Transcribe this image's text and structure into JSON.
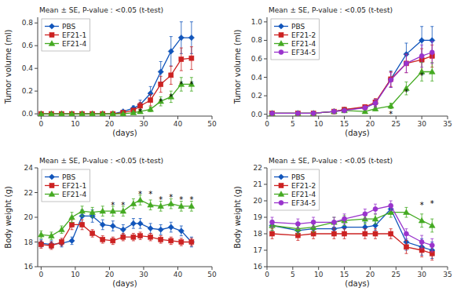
{
  "chart_data": [
    {
      "type": "line",
      "x_label": "(days)",
      "y_label": "Tumor volume (ml)",
      "xlim": [
        -1,
        50
      ],
      "ylim": [
        -0.02,
        0.85
      ],
      "xticks": [
        0,
        10,
        20,
        30,
        40,
        50
      ],
      "yticks": [
        {
          "value": 0,
          "label": "0.0"
        },
        0.2,
        0.4,
        0.6,
        0.8
      ],
      "annotation": "Mean ± SE, P-value : <0.05 (t-test)",
      "legend": "upper left",
      "grid": false,
      "x": [
        0,
        3,
        6,
        9,
        12,
        15,
        18,
        21,
        24,
        27,
        29,
        32,
        35,
        38,
        41,
        44
      ],
      "series": [
        {
          "name": "PBS",
          "color": "#1155bb",
          "marker": "diamond",
          "values": [
            0.0,
            0.0,
            0.0,
            0.0,
            0.0,
            0.0,
            0.0,
            0.0,
            0.02,
            0.05,
            0.08,
            0.18,
            0.37,
            0.55,
            0.67,
            0.67
          ],
          "errors": [
            0.0,
            0.0,
            0.0,
            0.0,
            0.0,
            0.0,
            0.0,
            0.0,
            0.01,
            0.02,
            0.04,
            0.06,
            0.09,
            0.13,
            0.14,
            0.14
          ]
        },
        {
          "name": "EF21-1",
          "color": "#cc2222",
          "marker": "square",
          "values": [
            0.0,
            0.0,
            0.0,
            0.0,
            0.0,
            0.0,
            0.0,
            0.0,
            0.01,
            0.03,
            0.07,
            0.12,
            0.26,
            0.34,
            0.48,
            0.49
          ],
          "errors": [
            0.0,
            0.0,
            0.0,
            0.0,
            0.0,
            0.0,
            0.0,
            0.0,
            0.005,
            0.01,
            0.03,
            0.05,
            0.07,
            0.08,
            0.1,
            0.1
          ]
        },
        {
          "name": "EF21-4",
          "color": "#44aa22",
          "marker": "triangle",
          "values": [
            0.0,
            0.0,
            0.0,
            0.0,
            0.0,
            0.0,
            0.0,
            0.0,
            0.0,
            0.01,
            0.02,
            0.04,
            0.11,
            0.15,
            0.26,
            0.26
          ],
          "errors": [
            0.0,
            0.0,
            0.0,
            0.0,
            0.0,
            0.0,
            0.0,
            0.0,
            0.0,
            0.005,
            0.01,
            0.02,
            0.04,
            0.05,
            0.06,
            0.06
          ]
        }
      ],
      "stars": [
        {
          "x": 29,
          "y": 0.025,
          "label": "*"
        },
        {
          "x": 35,
          "y": 0.12,
          "label": "*"
        },
        {
          "x": 38,
          "y": 0.16,
          "label": "*"
        },
        {
          "x": 41,
          "y": 0.27,
          "label": "*"
        },
        {
          "x": 44,
          "y": 0.27,
          "label": "*"
        }
      ]
    },
    {
      "type": "line",
      "x_label": "(days)",
      "y_label": "Tumor volume (ml)",
      "xlim": [
        0,
        35
      ],
      "ylim": [
        -0.02,
        1.05
      ],
      "xticks": [
        0,
        5,
        10,
        15,
        20,
        25,
        30,
        35
      ],
      "yticks": [
        {
          "value": 0,
          "label": "0.0"
        },
        0.2,
        0.4,
        0.6,
        0.8,
        {
          "value": 1.0,
          "label": "1.0"
        }
      ],
      "annotation": "Mean ± SE, P-value : <0.05 (t-test)",
      "legend": "upper left",
      "grid": false,
      "x": [
        1,
        6,
        9,
        13,
        15,
        19,
        21,
        24,
        27,
        30,
        32
      ],
      "series": [
        {
          "name": "PBS",
          "color": "#1155bb",
          "marker": "diamond",
          "values": [
            0.01,
            0.01,
            0.01,
            0.03,
            0.05,
            0.07,
            0.12,
            0.38,
            0.65,
            0.8,
            0.8
          ],
          "errors": [
            0.005,
            0.005,
            0.005,
            0.01,
            0.02,
            0.02,
            0.04,
            0.09,
            0.12,
            0.15,
            0.15
          ]
        },
        {
          "name": "EF21-2",
          "color": "#cc2222",
          "marker": "square",
          "values": [
            0.01,
            0.01,
            0.01,
            0.03,
            0.05,
            0.08,
            0.13,
            0.38,
            0.55,
            0.59,
            0.63
          ],
          "errors": [
            0.005,
            0.005,
            0.005,
            0.01,
            0.02,
            0.02,
            0.04,
            0.08,
            0.1,
            0.12,
            0.12
          ]
        },
        {
          "name": "EF21-4",
          "color": "#44aa22",
          "marker": "triangle",
          "values": [
            0.01,
            0.01,
            0.01,
            0.03,
            0.04,
            0.03,
            0.06,
            0.09,
            0.28,
            0.46,
            0.46
          ],
          "errors": [
            0.005,
            0.005,
            0.005,
            0.01,
            0.015,
            0.01,
            0.02,
            0.03,
            0.07,
            0.1,
            0.1
          ]
        },
        {
          "name": "EF34-5",
          "color": "#9933cc",
          "marker": "circle",
          "values": [
            0.01,
            0.01,
            0.01,
            0.03,
            0.04,
            0.07,
            0.12,
            0.37,
            0.55,
            0.63,
            0.67
          ],
          "errors": [
            0.005,
            0.005,
            0.005,
            0.01,
            0.015,
            0.02,
            0.04,
            0.08,
            0.1,
            0.12,
            0.12
          ]
        }
      ],
      "stars": [
        {
          "x": 24,
          "y": 0.01,
          "label": "*"
        },
        {
          "x": 27,
          "y": 0.25,
          "label": "*"
        },
        {
          "x": 30,
          "y": 0.43,
          "label": "*"
        }
      ]
    },
    {
      "type": "line",
      "x_label": "(days)",
      "y_label": "Body weight (g)",
      "xlim": [
        -1,
        50
      ],
      "ylim": [
        16,
        24
      ],
      "xticks": [
        0,
        10,
        20,
        30,
        40,
        50
      ],
      "yticks": [
        16,
        18,
        20,
        22,
        24
      ],
      "annotation": "Mean ± SE, P-value : <0.05 (t-test)",
      "legend": "upper left",
      "grid": false,
      "x": [
        0,
        3,
        6,
        9,
        12,
        15,
        18,
        21,
        24,
        27,
        29,
        32,
        35,
        38,
        41,
        44
      ],
      "series": [
        {
          "name": "PBS",
          "color": "#1155bb",
          "marker": "diamond",
          "values": [
            17.9,
            17.8,
            17.9,
            18.1,
            20.1,
            20.1,
            19.4,
            19.3,
            19.0,
            19.5,
            19.5,
            19.1,
            19.0,
            19.2,
            18.9,
            18.0
          ],
          "errors": [
            0.3,
            0.3,
            0.3,
            0.3,
            0.5,
            0.5,
            0.4,
            0.4,
            0.4,
            0.4,
            0.4,
            0.4,
            0.4,
            0.4,
            0.4,
            0.4
          ]
        },
        {
          "name": "EF21-1",
          "color": "#cc2222",
          "marker": "square",
          "values": [
            17.8,
            17.7,
            18.0,
            19.4,
            19.4,
            18.7,
            18.2,
            18.1,
            18.4,
            18.4,
            18.5,
            18.4,
            18.2,
            18.1,
            18.0,
            18.0
          ],
          "errors": [
            0.3,
            0.3,
            0.3,
            0.4,
            0.4,
            0.3,
            0.3,
            0.3,
            0.3,
            0.3,
            0.3,
            0.3,
            0.3,
            0.3,
            0.3,
            0.3
          ]
        },
        {
          "name": "EF21-4",
          "color": "#44aa22",
          "marker": "triangle",
          "values": [
            18.6,
            18.5,
            19.0,
            20.0,
            20.5,
            20.4,
            20.5,
            20.5,
            20.5,
            21.1,
            21.4,
            21.0,
            20.9,
            21.1,
            20.9,
            20.9
          ],
          "errors": [
            0.3,
            0.3,
            0.3,
            0.4,
            0.4,
            0.4,
            0.4,
            0.4,
            0.4,
            0.4,
            0.4,
            0.4,
            0.4,
            0.4,
            0.4,
            0.4
          ]
        }
      ],
      "stars": [
        {
          "x": 21,
          "y": 21.1,
          "label": "*"
        },
        {
          "x": 24,
          "y": 21.1,
          "label": "*"
        },
        {
          "x": 29,
          "y": 22.0,
          "label": "*"
        },
        {
          "x": 32,
          "y": 22.0,
          "label": "*"
        },
        {
          "x": 35,
          "y": 21.5,
          "label": "*"
        },
        {
          "x": 38,
          "y": 21.7,
          "label": "*"
        },
        {
          "x": 41,
          "y": 21.5,
          "label": "*"
        },
        {
          "x": 44,
          "y": 21.5,
          "label": "*"
        }
      ]
    },
    {
      "type": "line",
      "x_label": "(days)",
      "y_label": "Body weight (g)",
      "xlim": [
        0,
        35
      ],
      "ylim": [
        16,
        22
      ],
      "xticks": [
        0,
        5,
        10,
        15,
        20,
        25,
        30,
        35
      ],
      "yticks": [
        16,
        17,
        18,
        19,
        20,
        21,
        22
      ],
      "annotation": "Mean ± SE, P-value : <0.05 (t-test)",
      "legend": "upper left",
      "grid": false,
      "x": [
        1,
        6,
        9,
        13,
        15,
        19,
        21,
        24,
        27,
        30,
        32
      ],
      "series": [
        {
          "name": "PBS",
          "color": "#1155bb",
          "marker": "diamond",
          "values": [
            18.5,
            18.2,
            18.3,
            18.3,
            18.4,
            18.4,
            18.5,
            19.5,
            17.5,
            17.2,
            17.0
          ],
          "errors": [
            0.3,
            0.3,
            0.3,
            0.3,
            0.3,
            0.3,
            0.3,
            0.3,
            0.5,
            0.5,
            0.5
          ]
        },
        {
          "name": "EF21-2",
          "color": "#cc2222",
          "marker": "square",
          "values": [
            18.0,
            17.9,
            18.0,
            18.0,
            18.0,
            18.0,
            18.0,
            18.0,
            17.2,
            17.0,
            16.8
          ],
          "errors": [
            0.3,
            0.3,
            0.3,
            0.3,
            0.3,
            0.3,
            0.3,
            0.3,
            0.4,
            0.4,
            0.4
          ]
        },
        {
          "name": "EF21-4",
          "color": "#44aa22",
          "marker": "triangle",
          "values": [
            18.5,
            18.3,
            18.4,
            18.7,
            18.8,
            18.9,
            18.9,
            19.3,
            19.3,
            18.8,
            18.5
          ],
          "errors": [
            0.3,
            0.3,
            0.3,
            0.3,
            0.3,
            0.3,
            0.3,
            0.3,
            0.3,
            0.4,
            0.4
          ]
        },
        {
          "name": "EF34-5",
          "color": "#9933cc",
          "marker": "circle",
          "values": [
            18.7,
            18.6,
            18.7,
            18.7,
            18.9,
            19.2,
            19.5,
            19.7,
            18.0,
            17.5,
            17.3
          ],
          "errors": [
            0.3,
            0.3,
            0.3,
            0.3,
            0.3,
            0.3,
            0.3,
            0.3,
            0.3,
            0.4,
            0.4
          ]
        }
      ],
      "stars": [
        {
          "x": 30,
          "y": 19.8,
          "label": "*"
        },
        {
          "x": 32,
          "y": 19.9,
          "label": "*"
        }
      ]
    }
  ]
}
